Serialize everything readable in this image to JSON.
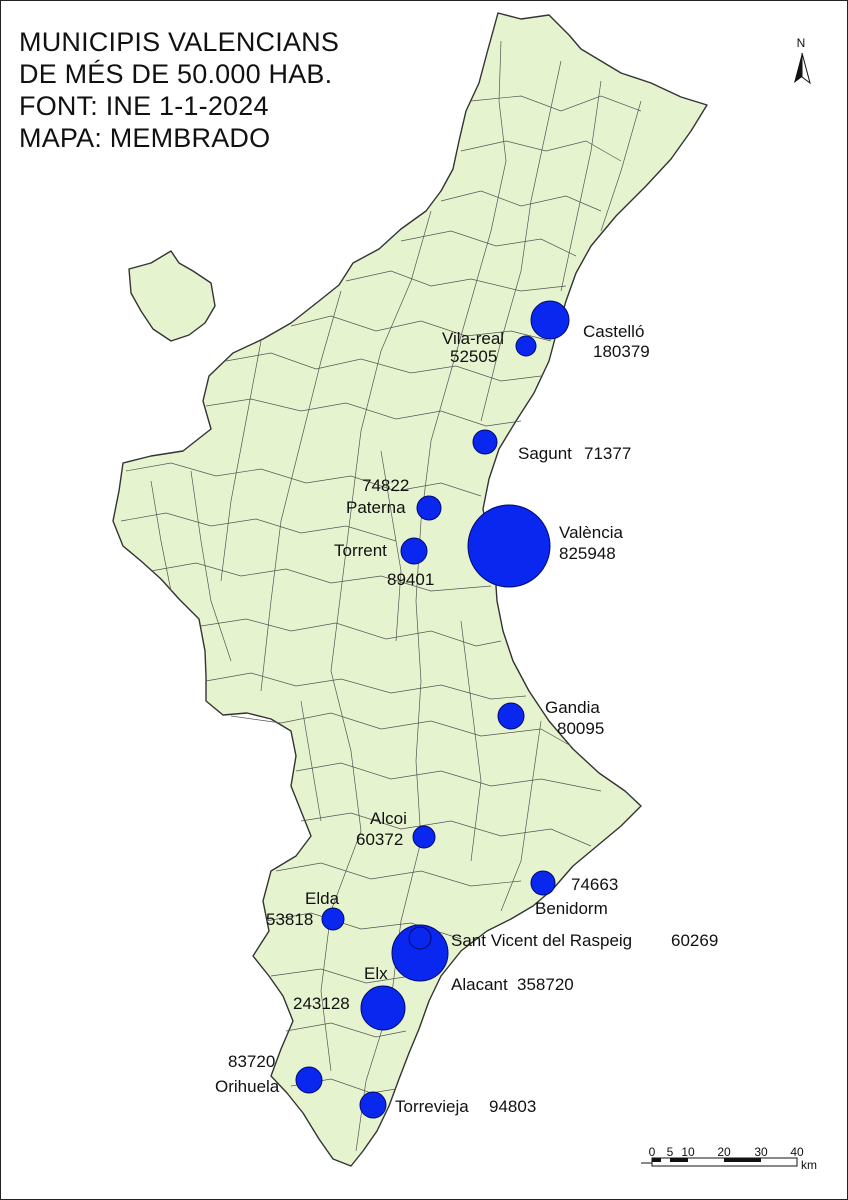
{
  "title": {
    "line1": "MUNICIPIS VALENCIANS",
    "line2": "DE MÉS DE 50.000 HAB.",
    "line3": "FONT: INE 1-1-2024",
    "line4": "MAPA: MEMBRADO"
  },
  "north": "N",
  "scale": {
    "ticks": [
      "0",
      "5",
      "10",
      "20",
      "30",
      "40"
    ],
    "unit": "km"
  },
  "colors": {
    "land": "#e6f3cf",
    "border": "#444444",
    "circle": "#0a27f0",
    "circle_stroke": "#000a6b"
  },
  "municipalities": [
    {
      "name": "València",
      "population": "825948"
    },
    {
      "name": "Alacant",
      "population": "358720"
    },
    {
      "name": "Elx",
      "population": "243128"
    },
    {
      "name": "Castelló",
      "population": "180379"
    },
    {
      "name": "Torrevieja",
      "population": "94803"
    },
    {
      "name": "Torrent",
      "population": "89401"
    },
    {
      "name": "Orihuela",
      "population": "83720"
    },
    {
      "name": "Gandia",
      "population": "80095"
    },
    {
      "name": "Paterna",
      "population": "74822"
    },
    {
      "name": "Benidorm",
      "population": "74663"
    },
    {
      "name": "Sagunt",
      "population": "71377"
    },
    {
      "name": "Alcoi",
      "population": "60372"
    },
    {
      "name": "Sant Vicent del Raspeig",
      "population": "60269"
    },
    {
      "name": "Elda",
      "population": "53818"
    },
    {
      "name": "Vila-real",
      "population": "52505"
    }
  ]
}
